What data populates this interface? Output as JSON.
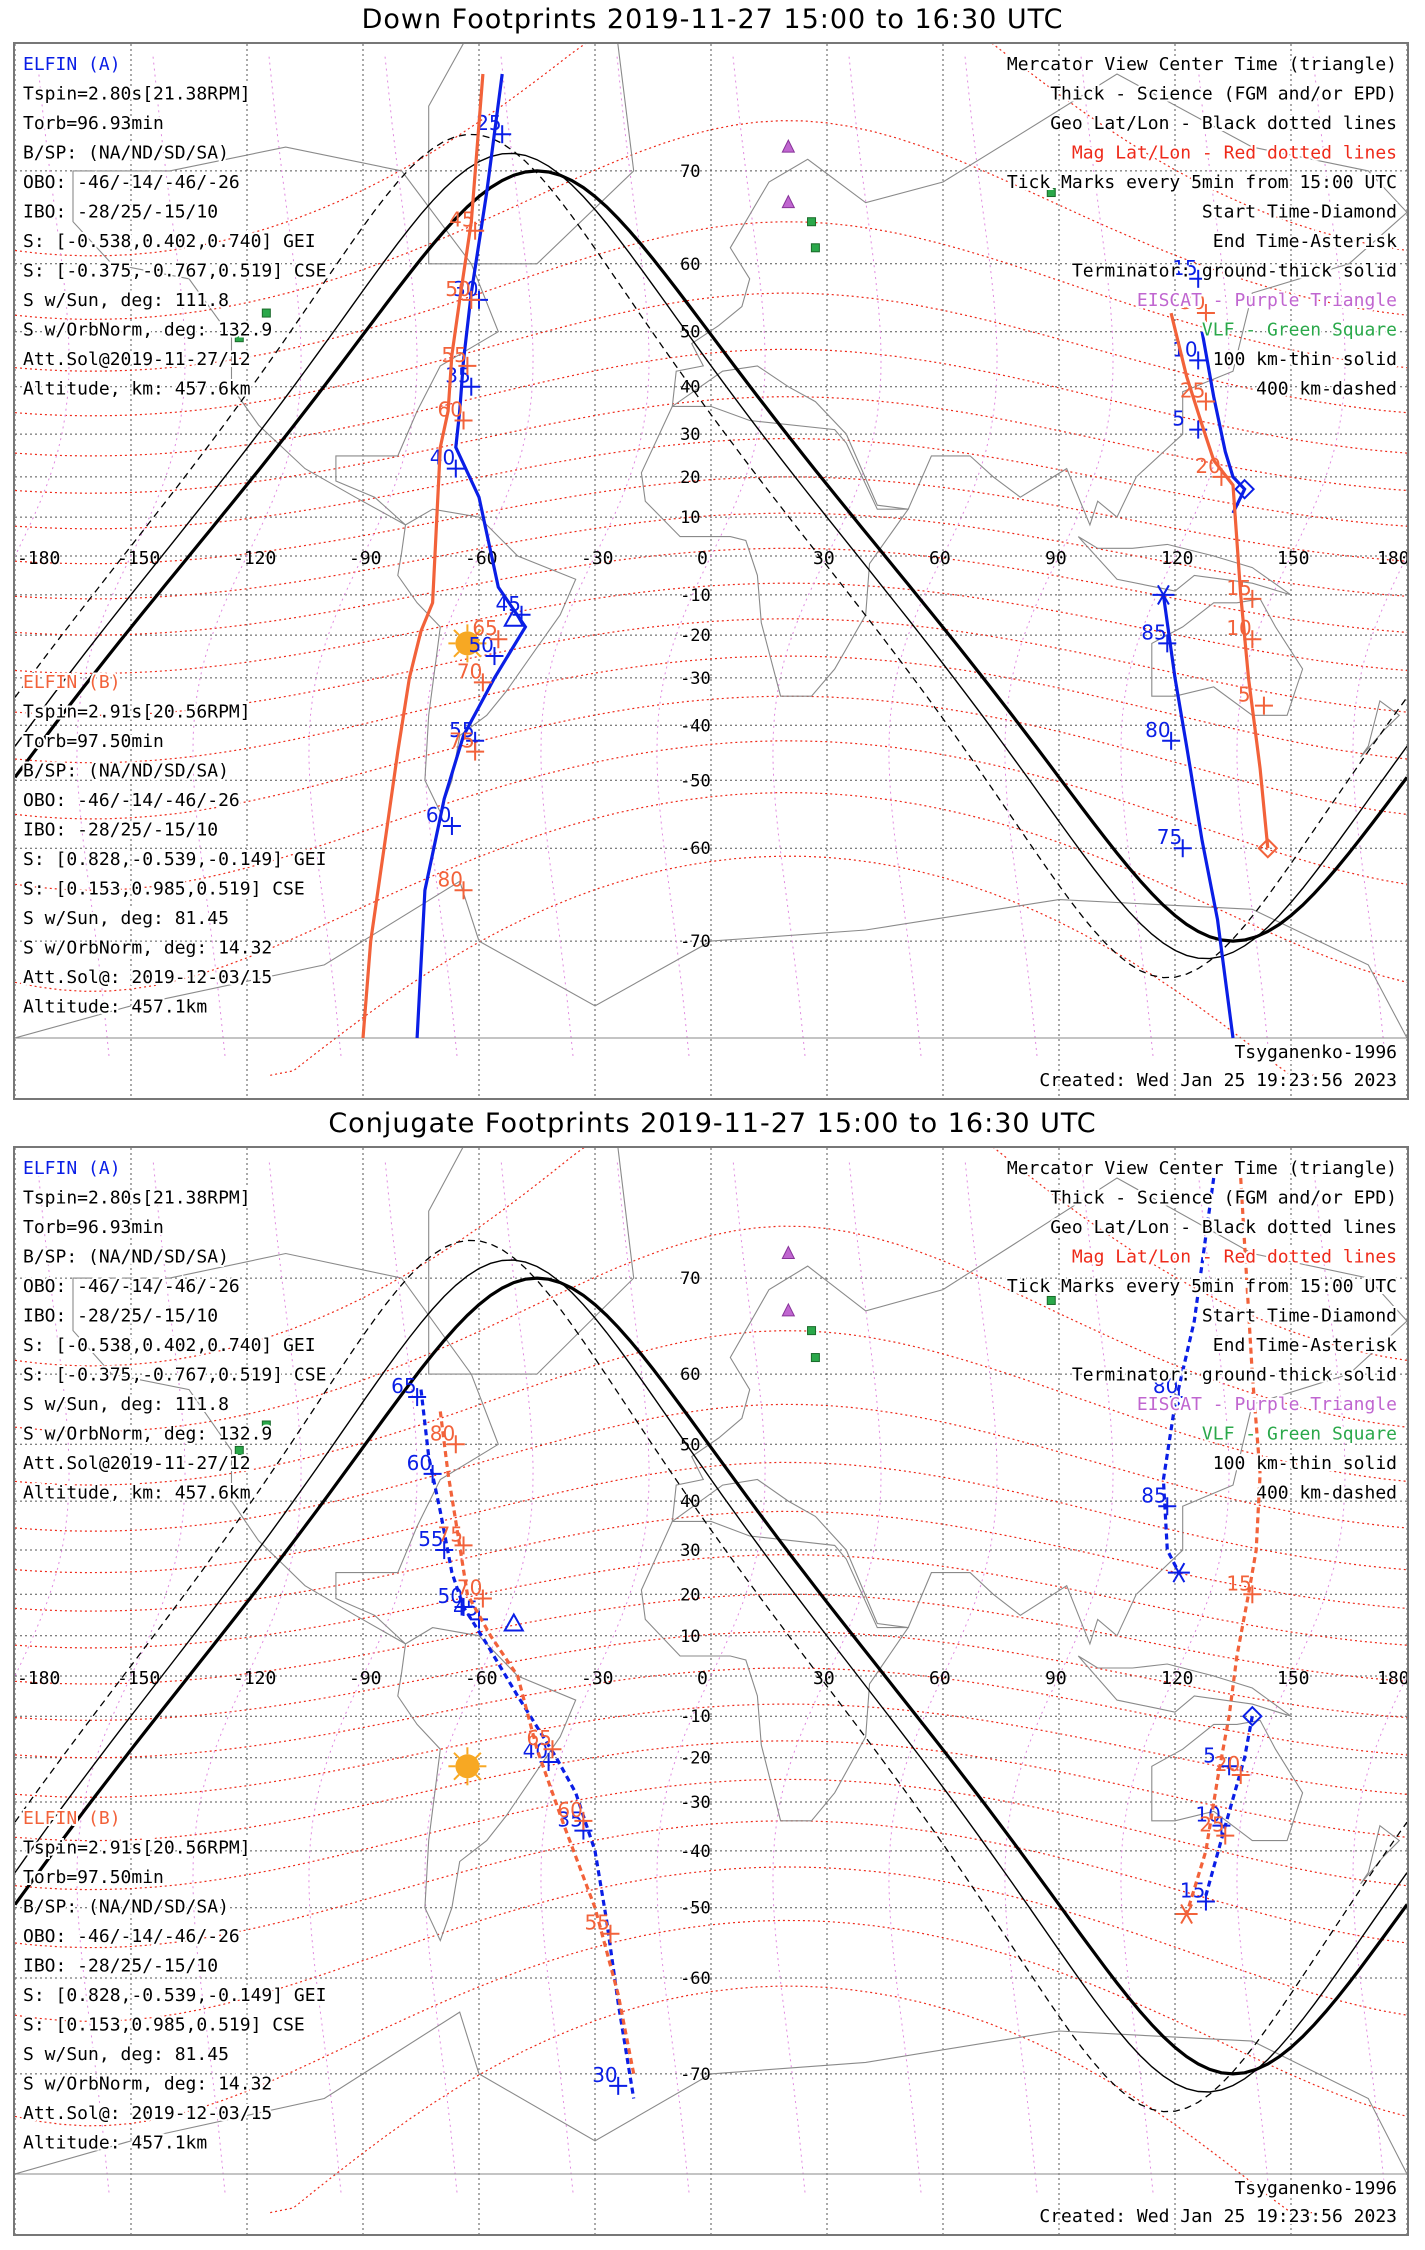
{
  "colors": {
    "sat_a": "#0a1ee6",
    "sat_b": "#f2623a",
    "mag_grid": "#ee2a1a",
    "geo_grid": "#000000",
    "eiscat": "#c066d0",
    "vlf": "#2aa84a",
    "sun": "#f7a823",
    "text": "#000000"
  },
  "panels": [
    {
      "title": "Down Footprints 2019-11-27 15:00 to 16:30 UTC",
      "info_a": [
        "ELFIN (A)",
        "Tspin=2.80s[21.38RPM]",
        "Torb=96.93min",
        "B/SP: (NA/ND/SD/SA)",
        "OBO: -46/-14/-46/-26",
        "IBO: -28/25/-15/10",
        "S: [-0.538,0.402,0.740] GEI",
        "S: [-0.375,-0.767,0.519] CSE",
        "S w/Sun, deg: 111.8",
        "S w/OrbNorm, deg: 132.9",
        "Att.Sol@2019-11-27/12",
        "Altitude, km: 457.6km"
      ],
      "info_b": [
        "ELFIN (B)",
        "Tspin=2.91s[20.56RPM]",
        "Torb=97.50min",
        "B/SP: (NA/ND/SD/SA)",
        "OBO: -46/-14/-46/-26",
        "IBO: -28/25/-15/10",
        "S: [0.828,-0.539,-0.149] GEI",
        "S: [0.153,0.985,0.519] CSE",
        "S w/Sun, deg: 81.45",
        "S w/OrbNorm, deg: 14.32",
        "Att.Sol@: 2019-12-03/15",
        "Altitude: 457.1km"
      ],
      "legend": [
        "Mercator View Center Time (triangle)",
        "Thick - Science (FGM and/or EPD)",
        "Geo Lat/Lon - Black dotted lines",
        "Mag Lat/Lon - Red dotted lines",
        "Tick Marks every 5min from 15:00 UTC",
        "Start Time-Diamond",
        "End Time-Asterisk",
        "Terminator: ground-thick solid",
        "EISCAT - Purple Triangle",
        "VLF - Green Square",
        "100 km-thin solid",
        "400 km-dashed"
      ],
      "model": "Tsyganenko-1996",
      "created": "Created: Wed Jan 25 19:23:56 2023",
      "lon_labels": [
        "-180",
        "-150",
        "-120",
        "-90",
        "-60",
        "-30",
        "0",
        "30",
        "60",
        "90",
        "120",
        "150",
        "180"
      ],
      "lat_labels": [
        "70",
        "60",
        "50",
        "40",
        "30",
        "20",
        "10",
        "0",
        "-10",
        "-20",
        "-30",
        "-40",
        "-50",
        "-60",
        "-70"
      ]
    },
    {
      "title": "Conjugate Footprints 2019-11-27 15:00 to 16:30 UTC",
      "info_a": [
        "ELFIN (A)",
        "Tspin=2.80s[21.38RPM]",
        "Torb=96.93min",
        "B/SP: (NA/ND/SD/SA)",
        "OBO: -46/-14/-46/-26",
        "IBO: -28/25/-15/10",
        "S: [-0.538,0.402,0.740] GEI",
        "S: [-0.375,-0.767,0.519] CSE",
        "S w/Sun, deg: 111.8",
        "S w/OrbNorm, deg: 132.9",
        "Att.Sol@2019-11-27/12",
        "Altitude, km: 457.6km"
      ],
      "info_b": [
        "ELFIN (B)",
        "Tspin=2.91s[20.56RPM]",
        "Torb=97.50min",
        "B/SP: (NA/ND/SD/SA)",
        "OBO: -46/-14/-46/-26",
        "IBO: -28/25/-15/10",
        "S: [0.828,-0.539,-0.149] GEI",
        "S: [0.153,0.985,0.519] CSE",
        "S w/Sun, deg: 81.45",
        "S w/OrbNorm, deg: 14.32",
        "Att.Sol@: 2019-12-03/15",
        "Altitude: 457.1km"
      ],
      "legend": [
        "Mercator View Center Time (triangle)",
        "Thick - Science (FGM and/or EPD)",
        "Geo Lat/Lon - Black dotted lines",
        "Mag Lat/Lon - Red dotted lines",
        "Tick Marks every 5min from 15:00 UTC",
        "Start Time-Diamond",
        "End Time-Asterisk",
        "Terminator: ground-thick solid",
        "EISCAT - Purple Triangle",
        "VLF - Green Square",
        "100 km-thin solid",
        "400 km-dashed"
      ],
      "model": "Tsyganenko-1996",
      "created": "Created: Wed Jan 25 19:23:56 2023",
      "lon_labels": [
        "-180",
        "-150",
        "-120",
        "-90",
        "-60",
        "-30",
        "0",
        "30",
        "60",
        "90",
        "120",
        "150",
        "180"
      ],
      "lat_labels": [
        "70",
        "60",
        "50",
        "40",
        "30",
        "20",
        "10",
        "0",
        "-10",
        "-20",
        "-30",
        "-40",
        "-50",
        "-60",
        "-70"
      ]
    }
  ],
  "chart_data": [
    {
      "type": "line",
      "title": "Down Footprints 2019-11-27 15:00 to 16:30 UTC",
      "xlabel": "",
      "ylabel": "",
      "xlim": [
        -180,
        180
      ],
      "ylim": [
        -77,
        77
      ],
      "grid": true,
      "projection": "mercator",
      "series": [
        {
          "name": "ELFIN (A)",
          "segments": [
            {
              "points": [
                [
                  -54,
                  77
                ],
                [
                  -58,
                  68
                ],
                [
                  -62,
                  56
                ],
                [
                  -64,
                  45
                ],
                [
                  -65,
                  35
                ],
                [
                  -66,
                  27
                ],
                [
                  -60,
                  15
                ],
                [
                  -55,
                  -8
                ],
                [
                  -48,
                  -18
                ],
                [
                  -56,
                  -30
                ],
                [
                  -64,
                  -42
                ],
                [
                  -69,
                  -53
                ],
                [
                  -74,
                  -65
                ],
                [
                  -76,
                  -77
                ]
              ],
              "ticks": [
                [
                  "25",
                  -54,
                  73
                ],
                [
                  "30",
                  -60,
                  55
                ],
                [
                  "35",
                  -62,
                  40
                ],
                [
                  "40",
                  -66,
                  22
                ],
                [
                  "45",
                  -49,
                  -15
                ],
                [
                  "50",
                  -56,
                  -25
                ],
                [
                  "55",
                  -61,
                  -43
                ],
                [
                  "60",
                  -67,
                  -57
                ]
              ]
            },
            {
              "points": [
                [
                  127,
                  50
                ],
                [
                  130,
                  38
                ],
                [
                  133,
                  26
                ],
                [
                  135,
                  20
                ],
                [
                  138,
                  17
                ],
                [
                  135,
                  11
                ]
              ],
              "ticks": [
                [
                  "15",
                  126,
                  58
                ],
                [
                  "10",
                  126,
                  45
                ],
                [
                  "5",
                  126,
                  31
                ]
              ],
              "start": [
                138,
                17
              ]
            },
            {
              "points": [
                [
                  117,
                  -10
                ],
                [
                  120,
                  -30
                ],
                [
                  123,
                  -44
                ],
                [
                  127,
                  -59
                ],
                [
                  131,
                  -68
                ],
                [
                  135,
                  -77
                ]
              ],
              "ticks": [
                [
                  "85",
                  118,
                  -22
                ],
                [
                  "80",
                  119,
                  -43
                ],
                [
                  "75",
                  122,
                  -60
                ]
              ],
              "end": [
                117,
                -10
              ]
            }
          ]
        },
        {
          "name": "ELFIN (B)",
          "segments": [
            {
              "points": [
                [
                  -59,
                  77
                ],
                [
                  -62,
                  65
                ],
                [
                  -65,
                  55
                ],
                [
                  -67,
                  46
                ],
                [
                  -68,
                  35
                ],
                [
                  -70,
                  27
                ],
                [
                  -72,
                  -12
                ],
                [
                  -75,
                  -19
                ],
                [
                  -78,
                  -30
                ],
                [
                  -81,
                  -45
                ],
                [
                  -84,
                  -58
                ],
                [
                  -88,
                  -70
                ],
                [
                  -90,
                  -77
                ]
              ],
              "ticks": [
                [
                  "45",
                  -61,
                  64
                ],
                [
                  "50",
                  -62,
                  55
                ],
                [
                  "55",
                  -63,
                  44
                ],
                [
                  "60",
                  -64,
                  33
                ],
                [
                  "65",
                  -55,
                  -21
                ],
                [
                  "70",
                  -59,
                  -31
                ],
                [
                  "75",
                  -61,
                  -45
                ],
                [
                  "80",
                  -64,
                  -65
                ]
              ]
            },
            {
              "points": [
                [
                  119,
                  53
                ],
                [
                  123,
                  42
                ],
                [
                  127,
                  32
                ],
                [
                  130,
                  24
                ],
                [
                  135,
                  18
                ],
                [
                  137,
                  -10
                ],
                [
                  139,
                  -30
                ],
                [
                  142,
                  -48
                ],
                [
                  144,
                  -60
                ]
              ],
              "ticks": [
                [
                  "30",
                  128,
                  53
                ],
                [
                  "25",
                  128,
                  37
                ],
                [
                  "20",
                  132,
                  20
                ],
                [
                  "15",
                  140,
                  -11
                ],
                [
                  "10",
                  140,
                  -21
                ],
                [
                  "5",
                  143,
                  -36
                ]
              ],
              "start": [
                144,
                -60
              ]
            }
          ]
        }
      ],
      "terminator": "ground thick solid",
      "sun_marker": [
        -63,
        -22
      ],
      "mag_grid_labels_red": [
        "50",
        "55",
        "60",
        "65",
        "70"
      ]
    },
    {
      "type": "line",
      "title": "Conjugate Footprints 2019-11-27 15:00 to 16:30 UTC",
      "xlabel": "",
      "ylabel": "",
      "xlim": [
        -180,
        180
      ],
      "ylim": [
        -77,
        77
      ],
      "grid": true,
      "projection": "mercator",
      "series": [
        {
          "name": "ELFIN (A)",
          "segments": [
            {
              "points": [
                [
                  -75,
                  58
                ],
                [
                  -73,
                  48
                ],
                [
                  -70,
                  38
                ],
                [
                  -67,
                  25
                ],
                [
                  -64,
                  17
                ],
                [
                  -58,
                  8
                ],
                [
                  -50,
                  -5
                ],
                [
                  -40,
                  -20
                ],
                [
                  -35,
                  -28
                ],
                [
                  -30,
                  -40
                ],
                [
                  -27,
                  -52
                ],
                [
                  -24,
                  -63
                ],
                [
                  -20,
                  -72
                ]
              ],
              "ticks": [
                [
                  "65",
                  -76,
                  57
                ],
                [
                  "60",
                  -72,
                  45
                ],
                [
                  "55",
                  -69,
                  30
                ],
                [
                  "50",
                  -64,
                  17
                ],
                [
                  "45",
                  -60,
                  14
                ],
                [
                  "40",
                  -42,
                  -21
                ],
                [
                  "35",
                  -33,
                  -36
                ],
                [
                  "30",
                  -24,
                  -71
                ]
              ]
            },
            {
              "points": [
                [
                  130,
                  77
                ],
                [
                  125,
                  66
                ],
                [
                  120,
                  56
                ],
                [
                  117,
                  44
                ],
                [
                  118,
                  30
                ],
                [
                  121,
                  25
                ]
              ],
              "ticks": [
                [
                  "80",
                  121,
                  57
                ],
                [
                  "85",
                  118,
                  39
                ]
              ],
              "end": [
                121,
                25
              ]
            },
            {
              "points": [
                [
                  140,
                  -10
                ],
                [
                  138,
                  -20
                ],
                [
                  133,
                  -35
                ],
                [
                  128,
                  -48
                ]
              ],
              "ticks": [
                [
                  "5",
                  134,
                  -22
                ],
                [
                  "10",
                  132,
                  -35
                ],
                [
                  "15",
                  128,
                  -49
                ]
              ],
              "start": [
                140,
                -10
              ]
            }
          ]
        },
        {
          "name": "ELFIN (B)",
          "segments": [
            {
              "points": [
                [
                  -70,
                  55
                ],
                [
                  -68,
                  45
                ],
                [
                  -66,
                  36
                ],
                [
                  -63,
                  20
                ],
                [
                  -57,
                  10
                ],
                [
                  -50,
                  0
                ],
                [
                  -45,
                  -18
                ],
                [
                  -38,
                  -35
                ],
                [
                  -30,
                  -50
                ],
                [
                  -24,
                  -62
                ],
                [
                  -20,
                  -70
                ]
              ],
              "ticks": [
                [
                  "80",
                  -66,
                  50
                ],
                [
                  "75",
                  -64,
                  31
                ],
                [
                  "70",
                  -59,
                  19
                ],
                [
                  "65",
                  -41,
                  -18
                ],
                [
                  "60",
                  -33,
                  -34
                ],
                [
                  "55",
                  -26,
                  -54
                ]
              ]
            },
            {
              "points": [
                [
                  137,
                  77
                ],
                [
                  140,
                  60
                ],
                [
                  142,
                  45
                ],
                [
                  141,
                  30
                ],
                [
                  139,
                  20
                ],
                [
                  136,
                  5
                ],
                [
                  134,
                  -10
                ],
                [
                  131,
                  -25
                ],
                [
                  128,
                  -40
                ],
                [
                  123,
                  -51
                ]
              ],
              "ticks": [
                [
                  "15",
                  140,
                  20
                ],
                [
                  "20",
                  137,
                  -24
                ],
                [
                  "25",
                  133,
                  -37
                ]
              ],
              "end": [
                123,
                -51
              ]
            }
          ]
        }
      ],
      "terminator": "ground thick solid",
      "sun_marker": [
        -63,
        -22
      ],
      "mag_grid_labels_red": [
        "60",
        "70",
        "75",
        "80"
      ]
    }
  ]
}
